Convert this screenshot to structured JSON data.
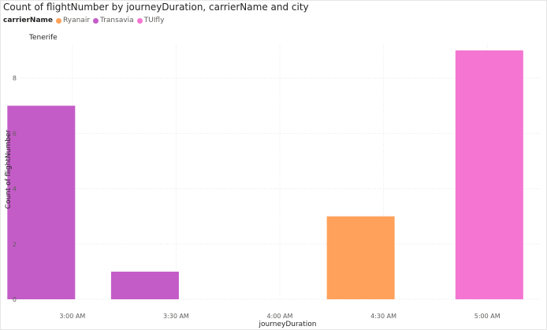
{
  "chart_data": {
    "type": "bar",
    "title": "Count of flightNumber by journeyDuration, carrierName and city",
    "panel": "Tenerife",
    "xlabel": "journeyDuration",
    "ylabel": "Count of flightNumber",
    "legend": {
      "title": "carrierName",
      "placement": "top-left",
      "entries": [
        {
          "name": "Ryanair",
          "color": "#FFA15A"
        },
        {
          "name": "Transavia",
          "color": "#C45CC8"
        },
        {
          "name": "TUIfly",
          "color": "#F476D2"
        }
      ]
    },
    "categories": [
      "3:00 AM",
      "3:30 AM",
      "4:00 AM",
      "4:30 AM",
      "5:00 AM"
    ],
    "series": [
      {
        "name": "Ryanair",
        "values": [
          null,
          null,
          null,
          3,
          null
        ]
      },
      {
        "name": "Transavia",
        "values": [
          7,
          1,
          null,
          null,
          null
        ]
      },
      {
        "name": "TUIfly",
        "values": [
          null,
          null,
          null,
          null,
          9
        ]
      }
    ],
    "yticks": [
      0,
      2,
      4,
      6,
      8
    ],
    "ylim": [
      0,
      9.2
    ],
    "grid": true
  }
}
